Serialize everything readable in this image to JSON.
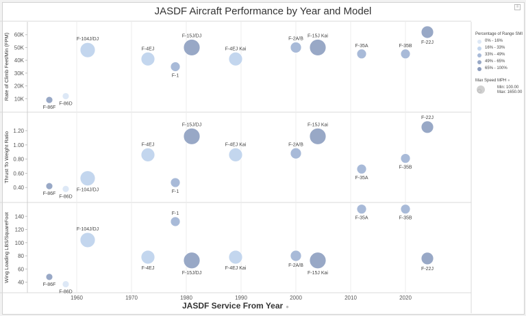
{
  "title": "JASDF Aircraft Performance by Year and Model",
  "xlabel": "JASDF Service From Year",
  "xticks": [
    1960,
    1970,
    1980,
    1990,
    2000,
    2010,
    2020
  ],
  "legend": {
    "color_title": "Percentage of Range SMI",
    "color_items": [
      {
        "label": "0% - 16%",
        "color": "#dde8f6"
      },
      {
        "label": "16% - 33%",
        "color": "#c3d6ee"
      },
      {
        "label": "33% - 49%",
        "color": "#a8bad8"
      },
      {
        "label": "49% - 65%",
        "color": "#98a8c6"
      },
      {
        "label": "65% - 100%",
        "color": "#8c9cbc"
      }
    ],
    "size_title": "Max Speed MPH",
    "size_min": "Min: 100.00",
    "size_max": "Max: 1650.00"
  },
  "chart_data": {
    "type": "scatter",
    "xrange": [
      1951,
      2032
    ],
    "panels": [
      {
        "ylabel": "Rate of Climb Feet/Min (FPM)",
        "ylim": [
          0,
          70000
        ],
        "yticks": [
          10000,
          20000,
          30000,
          40000,
          50000,
          60000
        ],
        "ytick_labels": [
          "10K",
          "20K",
          "30K",
          "40K",
          "50K",
          "60K"
        ],
        "points": [
          {
            "label": "F-86F",
            "x": 1955,
            "y": 9000,
            "r": 5,
            "color": "#98a8c6",
            "lp": "below"
          },
          {
            "label": "F-86D",
            "x": 1958,
            "y": 12000,
            "r": 5,
            "color": "#dde8f6",
            "lp": "below"
          },
          {
            "label": "F-104J/DJ",
            "x": 1962,
            "y": 48000,
            "r": 11,
            "color": "#c3d6ee",
            "lp": "above"
          },
          {
            "label": "F-4EJ",
            "x": 1973,
            "y": 41000,
            "r": 10,
            "color": "#c3d6ee",
            "lp": "above"
          },
          {
            "label": "F-1",
            "x": 1978,
            "y": 35000,
            "r": 7,
            "color": "#a8bad8",
            "lp": "below"
          },
          {
            "label": "F-15J/DJ",
            "x": 1981,
            "y": 50000,
            "r": 12,
            "color": "#98a8c6",
            "lp": "above"
          },
          {
            "label": "F-4EJ Kai",
            "x": 1989,
            "y": 41000,
            "r": 10,
            "color": "#c3d6ee",
            "lp": "above"
          },
          {
            "label": "F-2A/B",
            "x": 2000,
            "y": 50000,
            "r": 8,
            "color": "#a8bad8",
            "lp": "above"
          },
          {
            "label": "F-15J Kai",
            "x": 2004,
            "y": 50000,
            "r": 12,
            "color": "#98a8c6",
            "lp": "above"
          },
          {
            "label": "F-35A",
            "x": 2012,
            "y": 45000,
            "r": 7,
            "color": "#a8bad8",
            "lp": "above"
          },
          {
            "label": "F-35B",
            "x": 2020,
            "y": 45000,
            "r": 7,
            "color": "#a8bad8",
            "lp": "above"
          },
          {
            "label": "F-22J",
            "x": 2024,
            "y": 62000,
            "r": 9,
            "color": "#98a8c6",
            "lp": "below"
          }
        ]
      },
      {
        "ylabel": "Thrust To Weight Ratio",
        "ylim": [
          0.2,
          1.45
        ],
        "yticks": [
          0.4,
          0.6,
          0.8,
          1.0,
          1.2
        ],
        "ytick_labels": [
          "0.40",
          "0.60",
          "0.80",
          "1.00",
          "1.20"
        ],
        "points": [
          {
            "label": "F-86F",
            "x": 1955,
            "y": 0.42,
            "r": 5,
            "color": "#98a8c6",
            "lp": "below"
          },
          {
            "label": "F-86D",
            "x": 1958,
            "y": 0.38,
            "r": 5,
            "color": "#dde8f6",
            "lp": "below"
          },
          {
            "label": "F-104J/DJ",
            "x": 1962,
            "y": 0.53,
            "r": 11,
            "color": "#c3d6ee",
            "lp": "below"
          },
          {
            "label": "F-4EJ",
            "x": 1973,
            "y": 0.86,
            "r": 10,
            "color": "#c3d6ee",
            "lp": "above"
          },
          {
            "label": "F-1",
            "x": 1978,
            "y": 0.47,
            "r": 7,
            "color": "#a8bad8",
            "lp": "below"
          },
          {
            "label": "F-15J/DJ",
            "x": 1981,
            "y": 1.12,
            "r": 12,
            "color": "#98a8c6",
            "lp": "above"
          },
          {
            "label": "F-4EJ Kai",
            "x": 1989,
            "y": 0.86,
            "r": 10,
            "color": "#c3d6ee",
            "lp": "above"
          },
          {
            "label": "F-2A/B",
            "x": 2000,
            "y": 0.88,
            "r": 8,
            "color": "#a8bad8",
            "lp": "above"
          },
          {
            "label": "F-15J Kai",
            "x": 2004,
            "y": 1.12,
            "r": 12,
            "color": "#98a8c6",
            "lp": "above"
          },
          {
            "label": "F-35A",
            "x": 2012,
            "y": 0.66,
            "r": 7,
            "color": "#a8bad8",
            "lp": "below"
          },
          {
            "label": "F-35B",
            "x": 2020,
            "y": 0.81,
            "r": 7,
            "color": "#a8bad8",
            "lp": "below"
          },
          {
            "label": "F-22J",
            "x": 2024,
            "y": 1.25,
            "r": 9,
            "color": "#98a8c6",
            "lp": "above"
          }
        ]
      },
      {
        "ylabel": "Wing Loading LBS/SquareFoot",
        "ylim": [
          25,
          160
        ],
        "yticks": [
          40,
          60,
          80,
          100,
          120,
          140
        ],
        "ytick_labels": [
          "40",
          "60",
          "80",
          "100",
          "120",
          "140"
        ],
        "points": [
          {
            "label": "F-86F",
            "x": 1955,
            "y": 48,
            "r": 5,
            "color": "#98a8c6",
            "lp": "below"
          },
          {
            "label": "F-86D",
            "x": 1958,
            "y": 37,
            "r": 5,
            "color": "#dde8f6",
            "lp": "below"
          },
          {
            "label": "F-104J/DJ",
            "x": 1962,
            "y": 104,
            "r": 11,
            "color": "#c3d6ee",
            "lp": "above"
          },
          {
            "label": "F-4EJ",
            "x": 1973,
            "y": 78,
            "r": 10,
            "color": "#c3d6ee",
            "lp": "below"
          },
          {
            "label": "F-1",
            "x": 1978,
            "y": 132,
            "r": 7,
            "color": "#a8bad8",
            "lp": "above"
          },
          {
            "label": "F-15J/DJ",
            "x": 1981,
            "y": 73,
            "r": 12,
            "color": "#98a8c6",
            "lp": "below"
          },
          {
            "label": "F-4EJ Kai",
            "x": 1989,
            "y": 78,
            "r": 10,
            "color": "#c3d6ee",
            "lp": "below"
          },
          {
            "label": "F-2A/B",
            "x": 2000,
            "y": 80,
            "r": 8,
            "color": "#a8bad8",
            "lp": "below"
          },
          {
            "label": "F-15J Kai",
            "x": 2004,
            "y": 73,
            "r": 12,
            "color": "#98a8c6",
            "lp": "below"
          },
          {
            "label": "F-35A",
            "x": 2012,
            "y": 151,
            "r": 7,
            "color": "#a8bad8",
            "lp": "below"
          },
          {
            "label": "F-35B",
            "x": 2020,
            "y": 151,
            "r": 7,
            "color": "#a8bad8",
            "lp": "below"
          },
          {
            "label": "F-22J",
            "x": 2024,
            "y": 76,
            "r": 9,
            "color": "#98a8c6",
            "lp": "below"
          }
        ]
      }
    ]
  }
}
